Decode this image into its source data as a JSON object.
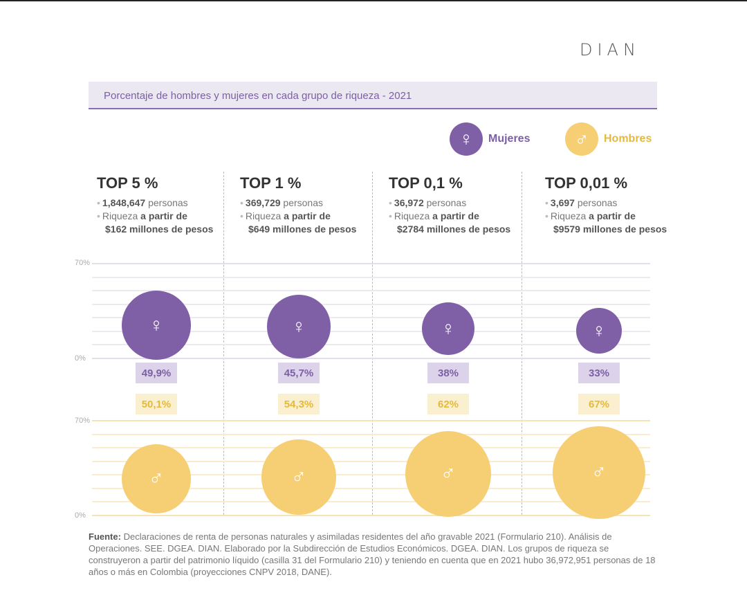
{
  "logo": "DIAN",
  "title": "Porcentaje de hombres y mujeres en cada grupo de riqueza - 2021",
  "legend": {
    "women_label": "Mujeres",
    "men_label": "Hombres",
    "women_symbol": "♀",
    "men_symbol": "♂",
    "women_color": "#7f5fa6",
    "men_color": "#f6cf75"
  },
  "chart_data": {
    "type": "bubble",
    "title": "Porcentaje de hombres y mujeres en cada grupo de riqueza - 2021",
    "categories": [
      "TOP 5 %",
      "TOP 1 %",
      "TOP 0,1 %",
      "TOP 0,01 %"
    ],
    "axis": {
      "women": {
        "ticks": [
          "70%",
          "0%"
        ],
        "range": [
          0,
          70
        ]
      },
      "men": {
        "ticks": [
          "70%",
          "0%"
        ],
        "range": [
          0,
          70
        ]
      }
    },
    "grid": true,
    "legend_position": "top-right",
    "series": [
      {
        "name": "Mujeres",
        "values": [
          49.9,
          45.7,
          38,
          33
        ],
        "labels": [
          "49,9%",
          "45,7%",
          "38%",
          "33%"
        ],
        "color": "#7f5fa6",
        "icon": "female-icon"
      },
      {
        "name": "Hombres",
        "values": [
          50.1,
          54.3,
          62,
          67
        ],
        "labels": [
          "50,1%",
          "54,3%",
          "62%",
          "67%"
        ],
        "color": "#f6cf75",
        "icon": "male-icon"
      }
    ]
  },
  "groups": [
    {
      "title": "TOP 5 %",
      "count": "1,848,647",
      "count_suffix": "personas",
      "wealth_prefix": "Riqueza",
      "wealth_bold": "a partir de",
      "wealth_value": "$162 millones de pesos"
    },
    {
      "title": "TOP 1 %",
      "count": "369,729",
      "count_suffix": "personas",
      "wealth_prefix": "Riqueza",
      "wealth_bold": "a partir de",
      "wealth_value": "$649 millones de pesos"
    },
    {
      "title": "TOP 0,1 %",
      "count": "36,972",
      "count_suffix": "personas",
      "wealth_prefix": "Riqueza",
      "wealth_bold": "a partir de",
      "wealth_value": "$2784 millones de pesos"
    },
    {
      "title": "TOP 0,01 %",
      "count": "3,697",
      "count_suffix": "personas",
      "wealth_prefix": "Riqueza",
      "wealth_bold": "a partir de",
      "wealth_value": "$9579 millones de pesos"
    }
  ],
  "footer": {
    "label": "Fuente:",
    "text": "Declaraciones de renta de personas naturales y asimiladas residentes del año gravable 2021 (Formulario 210). Análisis de Operaciones. SEE. DGEA. DIAN. Elaborado por la Subdirección de Estudios Económicos. DGEA. DIAN. Los grupos de riqueza se construyeron a partir del patrimonio líquido (casilla 31 del Formulario 210) y teniendo en cuenta que en 2021 hubo 36,972,951 personas de 18 años o más en Colombia (proyecciones CNPV 2018, DANE)."
  }
}
